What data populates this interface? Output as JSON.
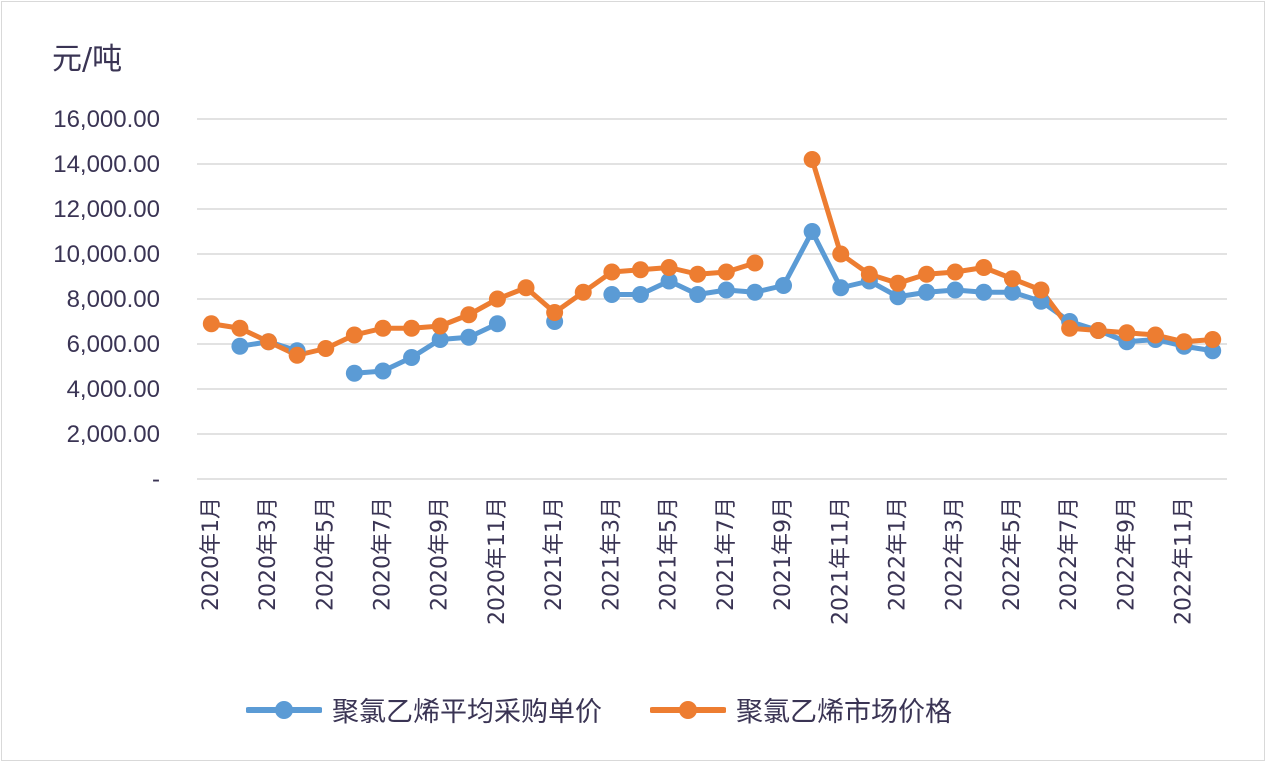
{
  "chart_data": {
    "type": "line",
    "unit_label": "元/吨",
    "ylim": [
      0,
      16000
    ],
    "yticks": [
      0,
      2000,
      4000,
      6000,
      8000,
      10000,
      12000,
      14000,
      16000
    ],
    "ytick_labels": [
      "-",
      "2,000.00",
      "4,000.00",
      "6,000.00",
      "8,000.00",
      "10,000.00",
      "12,000.00",
      "14,000.00",
      "16,000.00"
    ],
    "grid": true,
    "legend_position": "bottom",
    "categories": [
      "2020年1月",
      "2020年2月",
      "2020年3月",
      "2020年4月",
      "2020年5月",
      "2020年6月",
      "2020年7月",
      "2020年8月",
      "2020年9月",
      "2020年10月",
      "2020年11月",
      "2020年12月",
      "2021年1月",
      "2021年2月",
      "2021年3月",
      "2021年4月",
      "2021年5月",
      "2021年6月",
      "2021年7月",
      "2021年8月",
      "2021年9月",
      "2021年10月",
      "2021年11月",
      "2021年12月",
      "2022年1月",
      "2022年2月",
      "2022年3月",
      "2022年4月",
      "2022年5月",
      "2022年6月",
      "2022年7月",
      "2022年8月",
      "2022年9月",
      "2022年10月",
      "2022年11月",
      "2022年12月"
    ],
    "x_tick_labels": [
      "2020年1月",
      "2020年3月",
      "2020年5月",
      "2020年7月",
      "2020年9月",
      "2020年11月",
      "2021年1月",
      "2021年3月",
      "2021年5月",
      "2021年7月",
      "2021年9月",
      "2021年11月",
      "2022年1月",
      "2022年3月",
      "2022年5月",
      "2022年7月",
      "2022年9月",
      "2022年11月"
    ],
    "series": [
      {
        "name": "聚氯乙烯平均采购单价",
        "color": "#5b9bd5",
        "values": [
          null,
          5900,
          6100,
          5700,
          null,
          4700,
          4800,
          5400,
          6200,
          6300,
          6900,
          null,
          7000,
          null,
          8200,
          8200,
          8800,
          8200,
          8400,
          8300,
          8600,
          11000,
          8500,
          8800,
          8100,
          8300,
          8400,
          8300,
          8300,
          7900,
          7000,
          6600,
          6100,
          6200,
          5900,
          5700
        ]
      },
      {
        "name": "聚氯乙烯市场价格",
        "color": "#ed7d31",
        "values": [
          6900,
          6700,
          6100,
          5500,
          5800,
          6400,
          6700,
          6700,
          6800,
          7300,
          8000,
          8500,
          7400,
          8300,
          9200,
          9300,
          9400,
          9100,
          9200,
          9600,
          null,
          14200,
          10000,
          9100,
          8700,
          9100,
          9200,
          9400,
          8900,
          8400,
          6700,
          6600,
          6500,
          6400,
          6100,
          6200
        ]
      }
    ]
  }
}
